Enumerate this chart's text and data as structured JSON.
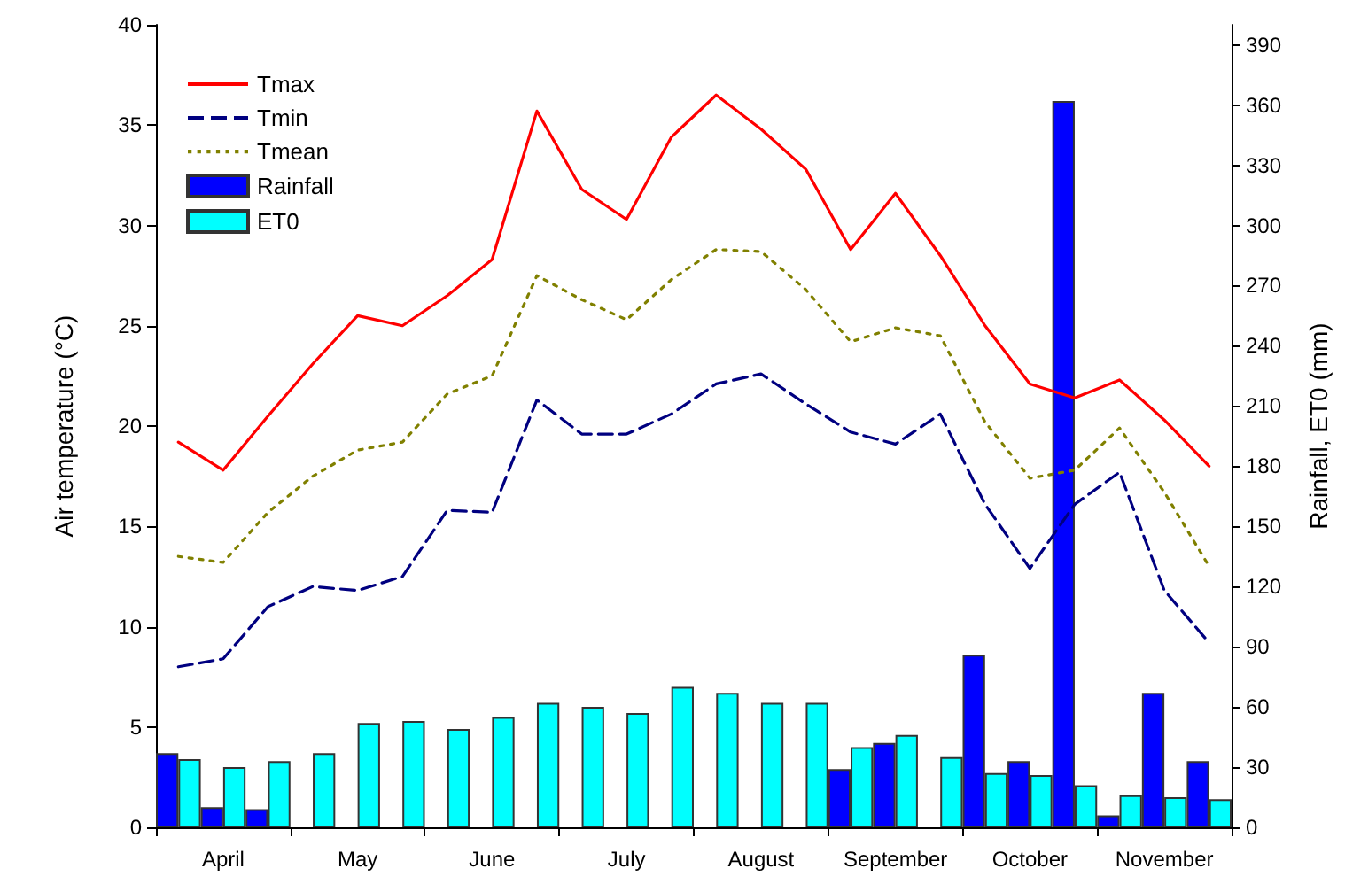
{
  "chart_data": {
    "type": "line",
    "ylabel": "Air temperature (°C)",
    "y2label": "Rainfall, ET0 (mm)",
    "categories": [
      null,
      "April",
      null,
      null,
      "May",
      null,
      null,
      "June",
      null,
      null,
      "July",
      null,
      null,
      "August",
      null,
      null,
      "September",
      null,
      null,
      "October",
      null,
      null,
      "November",
      null
    ],
    "ylim": [
      0,
      40
    ],
    "yticks": [
      0,
      5,
      10,
      15,
      20,
      25,
      30,
      35,
      40
    ],
    "y2lim": [
      0,
      400
    ],
    "y2ticks": [
      0,
      30,
      60,
      90,
      120,
      150,
      180,
      210,
      240,
      270,
      300,
      330,
      360,
      390
    ],
    "grid": false,
    "legend": "top left",
    "marker": "none",
    "series": [
      {
        "name": "Tmax",
        "color": "#ff0000",
        "line_style": "solid",
        "values": [
          19.2,
          17.8,
          20.5,
          23.1,
          25.5,
          25.0,
          26.5,
          28.3,
          35.7,
          31.8,
          30.3,
          34.4,
          36.5,
          34.8,
          32.8,
          28.8,
          31.6,
          28.5,
          25.0,
          22.1,
          21.4,
          22.3,
          20.3,
          18.0
        ]
      },
      {
        "name": "Tmin",
        "color": "#000080",
        "line_style": "dashed",
        "values": [
          8.0,
          8.4,
          11.0,
          12.0,
          11.8,
          12.5,
          15.8,
          15.7,
          21.3,
          19.6,
          19.6,
          20.6,
          22.1,
          22.6,
          21.1,
          19.7,
          19.1,
          20.6,
          16.1,
          12.9,
          16.1,
          17.7,
          11.8,
          9.2
        ]
      },
      {
        "name": "Tmean",
        "color": "#808000",
        "line_style": "dotted",
        "values": [
          13.5,
          13.2,
          15.7,
          17.5,
          18.8,
          19.2,
          21.6,
          22.5,
          27.5,
          26.3,
          25.3,
          27.3,
          28.8,
          28.7,
          26.8,
          24.2,
          24.9,
          24.5,
          20.2,
          17.4,
          17.8,
          19.9,
          16.7,
          13.0
        ]
      },
      {
        "name": "Rainfall",
        "type": "bar",
        "axis": "y2",
        "color": "#0000ff",
        "values": [
          37,
          10,
          9,
          null,
          null,
          null,
          null,
          null,
          null,
          null,
          null,
          null,
          null,
          null,
          null,
          29,
          42,
          null,
          86,
          33,
          362,
          6,
          67,
          33
        ]
      },
      {
        "name": "ET0",
        "type": "bar",
        "axis": "y2",
        "color": "#00ffff",
        "values": [
          34,
          30,
          33,
          37,
          52,
          53,
          49,
          55,
          62,
          60,
          57,
          70,
          67,
          62,
          62,
          40,
          46,
          35,
          27,
          26,
          21,
          16,
          15,
          14
        ]
      }
    ]
  }
}
